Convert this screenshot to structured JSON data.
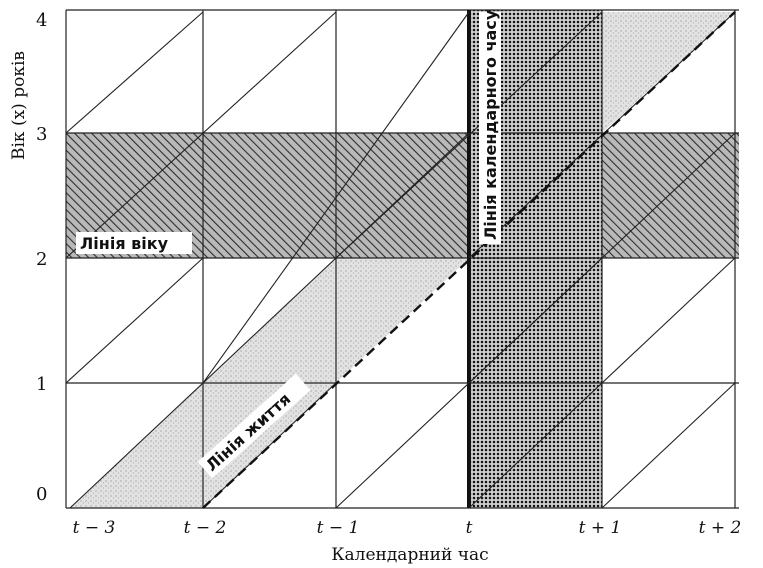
{
  "y_axis": {
    "label": "Вік (x) років",
    "ticks": [
      "0",
      "1",
      "2",
      "3",
      "4"
    ]
  },
  "x_axis": {
    "label": "Календарний час",
    "ticks": [
      "t − 3",
      "t − 2",
      "t − 1",
      "t",
      "t + 1",
      "t + 2"
    ]
  },
  "callouts": {
    "age_line": "Лінія віку",
    "life_line": "Лінія життя",
    "calendar_line": "Лінія календарного часу"
  },
  "colors": {
    "grid": "#222222",
    "hatch": "#333333",
    "dots": "#111111",
    "light_fill": "#dcdcdc"
  }
}
